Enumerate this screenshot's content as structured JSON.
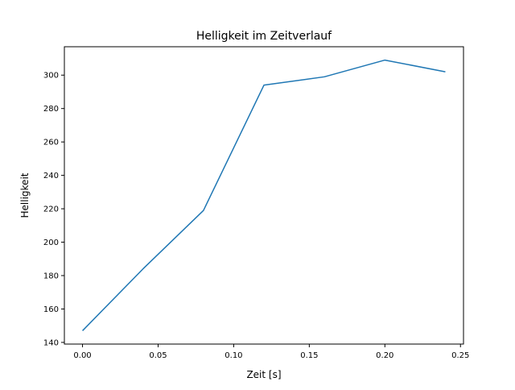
{
  "chart_data": {
    "type": "line",
    "title": "Helligkeit im Zeitverlauf",
    "xlabel": "Zeit [s]",
    "ylabel": "Helligkeit",
    "xlim": [
      -0.012,
      0.252
    ],
    "ylim": [
      139,
      317
    ],
    "xticks": [
      0.0,
      0.05,
      0.1,
      0.15,
      0.2,
      0.25
    ],
    "xtick_labels": [
      "0.00",
      "0.05",
      "0.10",
      "0.15",
      "0.20",
      "0.25"
    ],
    "yticks": [
      140,
      160,
      180,
      200,
      220,
      240,
      260,
      280,
      300
    ],
    "ytick_labels": [
      "140",
      "160",
      "180",
      "200",
      "220",
      "240",
      "260",
      "280",
      "300"
    ],
    "grid": false,
    "series": [
      {
        "name": "Helligkeit",
        "color": "#1f77b4",
        "x": [
          0.0,
          0.04,
          0.08,
          0.12,
          0.16,
          0.2,
          0.24
        ],
        "y": [
          147,
          184,
          219,
          294,
          299,
          309,
          302
        ]
      }
    ]
  }
}
